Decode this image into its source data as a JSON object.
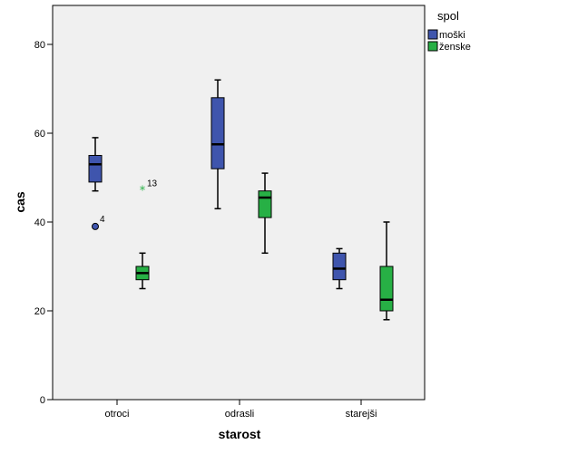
{
  "chart_data": {
    "type": "boxplot",
    "xlabel": "starost",
    "ylabel": "cas",
    "ylim": [
      0,
      90
    ],
    "yticks": [
      0,
      20,
      40,
      60,
      80
    ],
    "categories": [
      "otroci",
      "odrasli",
      "starejši"
    ],
    "grid": false,
    "legend": {
      "title": "spol",
      "placement": "right-top",
      "entries": [
        {
          "name": "moški",
          "color": "#3f55ad"
        },
        {
          "name": "ženske",
          "color": "#27b045"
        }
      ]
    },
    "series": [
      {
        "name": "moški",
        "color": "#3f55ad",
        "boxes": [
          {
            "category": "otroci",
            "whisker_low": 47,
            "q1": 49,
            "median": 53,
            "q3": 55,
            "whisker_high": 59
          },
          {
            "category": "odrasli",
            "whisker_low": 43,
            "q1": 52,
            "median": 57.5,
            "q3": 68,
            "whisker_high": 72
          },
          {
            "category": "starejši",
            "whisker_low": 25,
            "q1": 27,
            "median": 29.5,
            "q3": 33,
            "whisker_high": 34
          }
        ],
        "outliers": [
          {
            "category": "otroci",
            "value": 39,
            "label": "4",
            "marker": "circle"
          }
        ]
      },
      {
        "name": "ženske",
        "color": "#27b045",
        "boxes": [
          {
            "category": "otroci",
            "whisker_low": 25,
            "q1": 27,
            "median": 28.5,
            "q3": 30,
            "whisker_high": 33
          },
          {
            "category": "odrasli",
            "whisker_low": 33,
            "q1": 41,
            "median": 45.5,
            "q3": 47,
            "whisker_high": 51
          },
          {
            "category": "starejši",
            "whisker_low": 18,
            "q1": 20,
            "median": 22.5,
            "q3": 30,
            "whisker_high": 40
          }
        ],
        "outliers": [
          {
            "category": "otroci",
            "value": 47,
            "label": "13",
            "marker": "star"
          }
        ]
      }
    ]
  }
}
